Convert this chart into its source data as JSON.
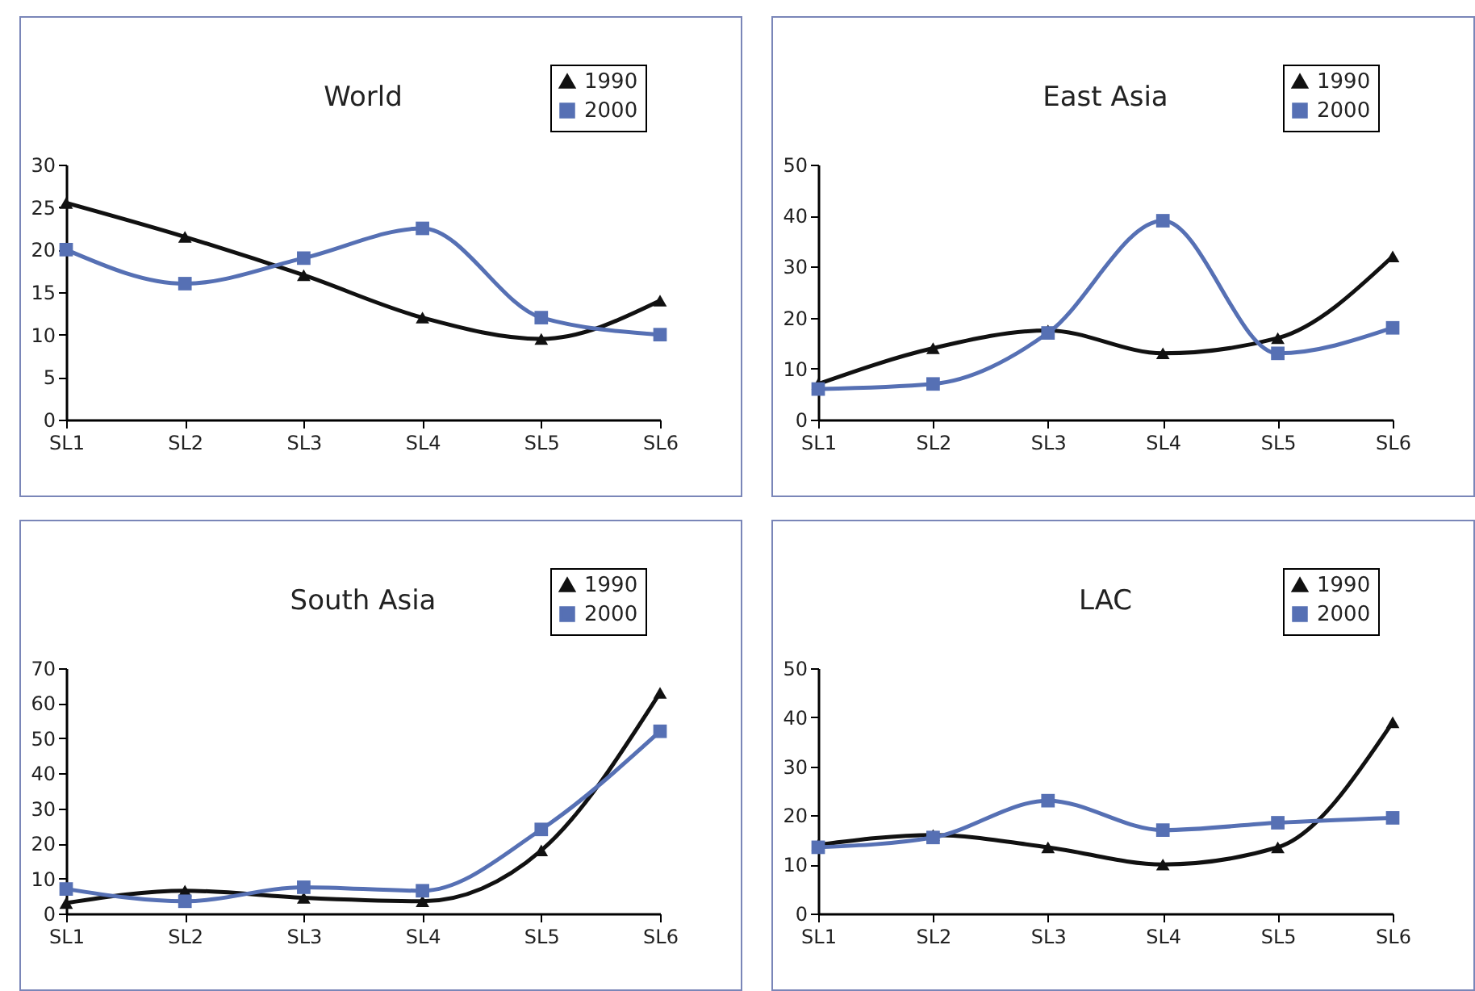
{
  "chart_data": [
    {
      "type": "line",
      "title": "World",
      "categories": [
        "SL1",
        "SL2",
        "SL3",
        "SL4",
        "SL5",
        "SL6"
      ],
      "ylim": [
        0,
        30
      ],
      "yticks": [
        0,
        5,
        10,
        15,
        20,
        25,
        30
      ],
      "grid": false,
      "legend": "top right",
      "series": [
        {
          "name": "1990",
          "color": "#111111",
          "marker": "triangle",
          "values": [
            25.5,
            21.5,
            17,
            12,
            9.5,
            14
          ]
        },
        {
          "name": "2000",
          "color": "#5670b4",
          "marker": "square",
          "values": [
            20,
            16,
            19,
            22.5,
            12,
            10
          ]
        }
      ]
    },
    {
      "type": "line",
      "title": "East Asia",
      "categories": [
        "SL1",
        "SL2",
        "SL3",
        "SL4",
        "SL5",
        "SL6"
      ],
      "ylim": [
        0,
        50
      ],
      "yticks": [
        0,
        10,
        20,
        30,
        40,
        50
      ],
      "grid": false,
      "legend": "top right",
      "series": [
        {
          "name": "1990",
          "color": "#111111",
          "marker": "triangle",
          "values": [
            7,
            14,
            17.5,
            13,
            16,
            32
          ]
        },
        {
          "name": "2000",
          "color": "#5670b4",
          "marker": "square",
          "values": [
            6,
            7,
            17,
            39,
            13,
            18
          ]
        }
      ]
    },
    {
      "type": "line",
      "title": "South Asia",
      "categories": [
        "SL1",
        "SL2",
        "SL3",
        "SL4",
        "SL5",
        "SL6"
      ],
      "ylim": [
        0,
        70
      ],
      "yticks": [
        0,
        10,
        20,
        30,
        40,
        50,
        60,
        70
      ],
      "grid": false,
      "legend": "top right",
      "series": [
        {
          "name": "1990",
          "color": "#111111",
          "marker": "triangle",
          "values": [
            3,
            6.5,
            4.5,
            3.5,
            18,
            63
          ]
        },
        {
          "name": "2000",
          "color": "#5670b4",
          "marker": "square",
          "values": [
            7,
            3.5,
            7.5,
            6.5,
            24,
            52
          ]
        }
      ]
    },
    {
      "type": "line",
      "title": "LAC",
      "categories": [
        "SL1",
        "SL2",
        "SL3",
        "SL4",
        "SL5",
        "SL6"
      ],
      "ylim": [
        0,
        50
      ],
      "yticks": [
        0,
        10,
        20,
        30,
        40,
        50
      ],
      "grid": false,
      "legend": "top right",
      "series": [
        {
          "name": "1990",
          "color": "#111111",
          "marker": "triangle",
          "values": [
            14,
            16,
            13.5,
            10,
            13.5,
            39
          ]
        },
        {
          "name": "2000",
          "color": "#5670b4",
          "marker": "square",
          "values": [
            13.5,
            15.5,
            23,
            17,
            18.5,
            19.5
          ]
        }
      ]
    }
  ]
}
